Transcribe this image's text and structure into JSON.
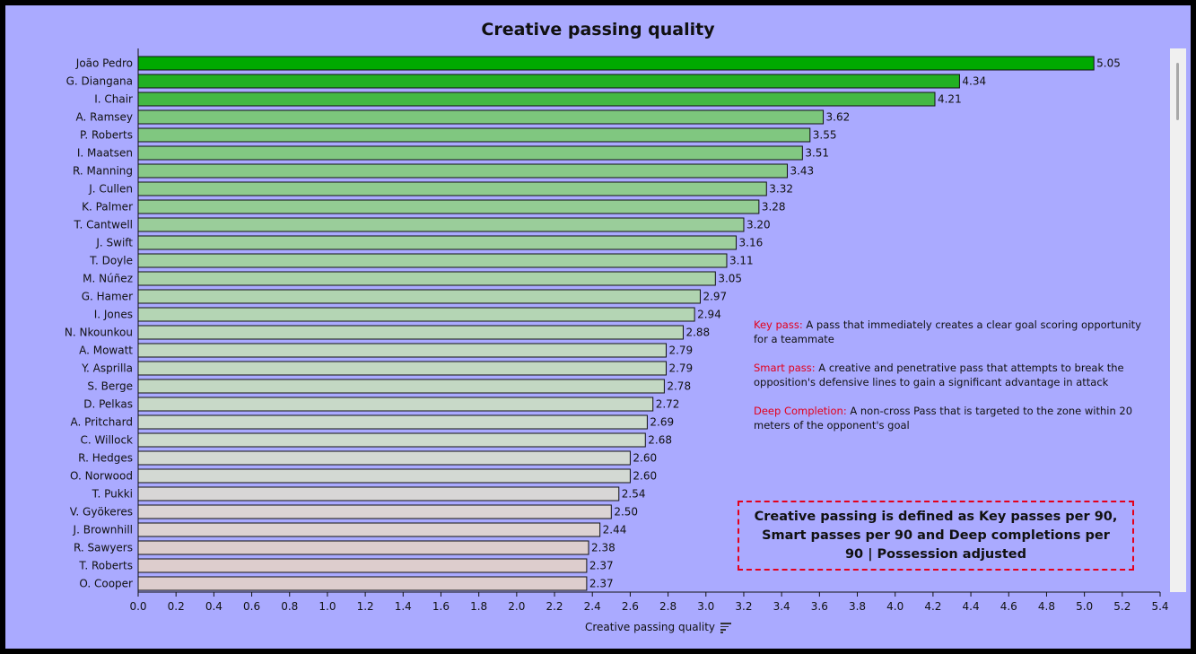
{
  "title": "Creative passing quality",
  "xlabel": "Creative passing quality",
  "notes": [
    {
      "term": "Key pass:",
      "text": " A pass that immediately creates a clear goal scoring opportunity for a teammate"
    },
    {
      "term": "Smart pass:",
      "text": " A creative and penetrative pass that attempts to break the opposition's defensive lines to gain a significant advantage in attack"
    },
    {
      "term": "Deep Completion:",
      "text": " A non-cross Pass that is targeted to the zone within 20 meters of the opponent's goal"
    }
  ],
  "summary": "Creative passing is defined as Key passes per 90, Smart passes per 90 and Deep completions per 90 | Possession adjusted",
  "chart_data": {
    "type": "bar",
    "orientation": "horizontal",
    "title": "Creative passing quality",
    "xlabel": "Creative passing quality",
    "ylabel": "",
    "xlim": [
      0,
      5.4
    ],
    "xticks": [
      "0.0",
      "0.2",
      "0.4",
      "0.6",
      "0.8",
      "1.0",
      "1.2",
      "1.4",
      "1.6",
      "1.8",
      "2.0",
      "2.2",
      "2.4",
      "2.6",
      "2.8",
      "3.0",
      "3.2",
      "3.4",
      "3.6",
      "3.8",
      "4.0",
      "4.2",
      "4.4",
      "4.6",
      "4.8",
      "5.0",
      "5.2",
      "5.4"
    ],
    "categories": [
      "João Pedro",
      "G. Diangana",
      "I. Chair",
      "A. Ramsey",
      "P. Roberts",
      "I. Maatsen",
      "R. Manning",
      "J. Cullen",
      "K. Palmer",
      "T. Cantwell",
      "J. Swift",
      "T. Doyle",
      "M. Núñez",
      "G. Hamer",
      "I. Jones",
      "N. Nkounkou",
      "A. Mowatt",
      "Y. Asprilla",
      "S. Berge",
      "D. Pelkas",
      "A. Pritchard",
      "C. Willock",
      "R. Hedges",
      "O. Norwood",
      "T. Pukki",
      "V. Gyökeres",
      "J. Brownhill",
      "R. Sawyers",
      "T. Roberts",
      "O. Cooper"
    ],
    "values": [
      5.05,
      4.34,
      4.21,
      3.62,
      3.55,
      3.51,
      3.43,
      3.32,
      3.28,
      3.2,
      3.16,
      3.11,
      3.05,
      2.97,
      2.94,
      2.88,
      2.79,
      2.79,
      2.78,
      2.72,
      2.69,
      2.68,
      2.6,
      2.6,
      2.54,
      2.5,
      2.44,
      2.38,
      2.37,
      2.37
    ],
    "value_labels": [
      "5.05",
      "4.34",
      "4.21",
      "3.62",
      "3.55",
      "3.51",
      "3.43",
      "3.32",
      "3.28",
      "3.20",
      "3.16",
      "3.11",
      "3.05",
      "2.97",
      "2.94",
      "2.88",
      "2.79",
      "2.79",
      "2.78",
      "2.72",
      "2.69",
      "2.68",
      "2.60",
      "2.60",
      "2.54",
      "2.50",
      "2.44",
      "2.38",
      "2.37",
      "2.37"
    ],
    "colors": [
      "#00aa00",
      "#22b022",
      "#44b844",
      "#7cc67c",
      "#80c780",
      "#82c882",
      "#88c988",
      "#8fcb8f",
      "#93cc93",
      "#9acd9a",
      "#9ecf9e",
      "#a3d0a3",
      "#aad2aa",
      "#b0d4b0",
      "#b4d5b4",
      "#bbd6bb",
      "#c2d8c2",
      "#c2d8c2",
      "#c3d8c3",
      "#c8d9c8",
      "#ccdacc",
      "#cddacd",
      "#d3d9d3",
      "#d3d9d3",
      "#d8d6d6",
      "#dbd4d4",
      "#ddd2d2",
      "#ddcece",
      "#ddcdcd",
      "#ddcdcd"
    ],
    "grid": false,
    "legend": "none"
  }
}
